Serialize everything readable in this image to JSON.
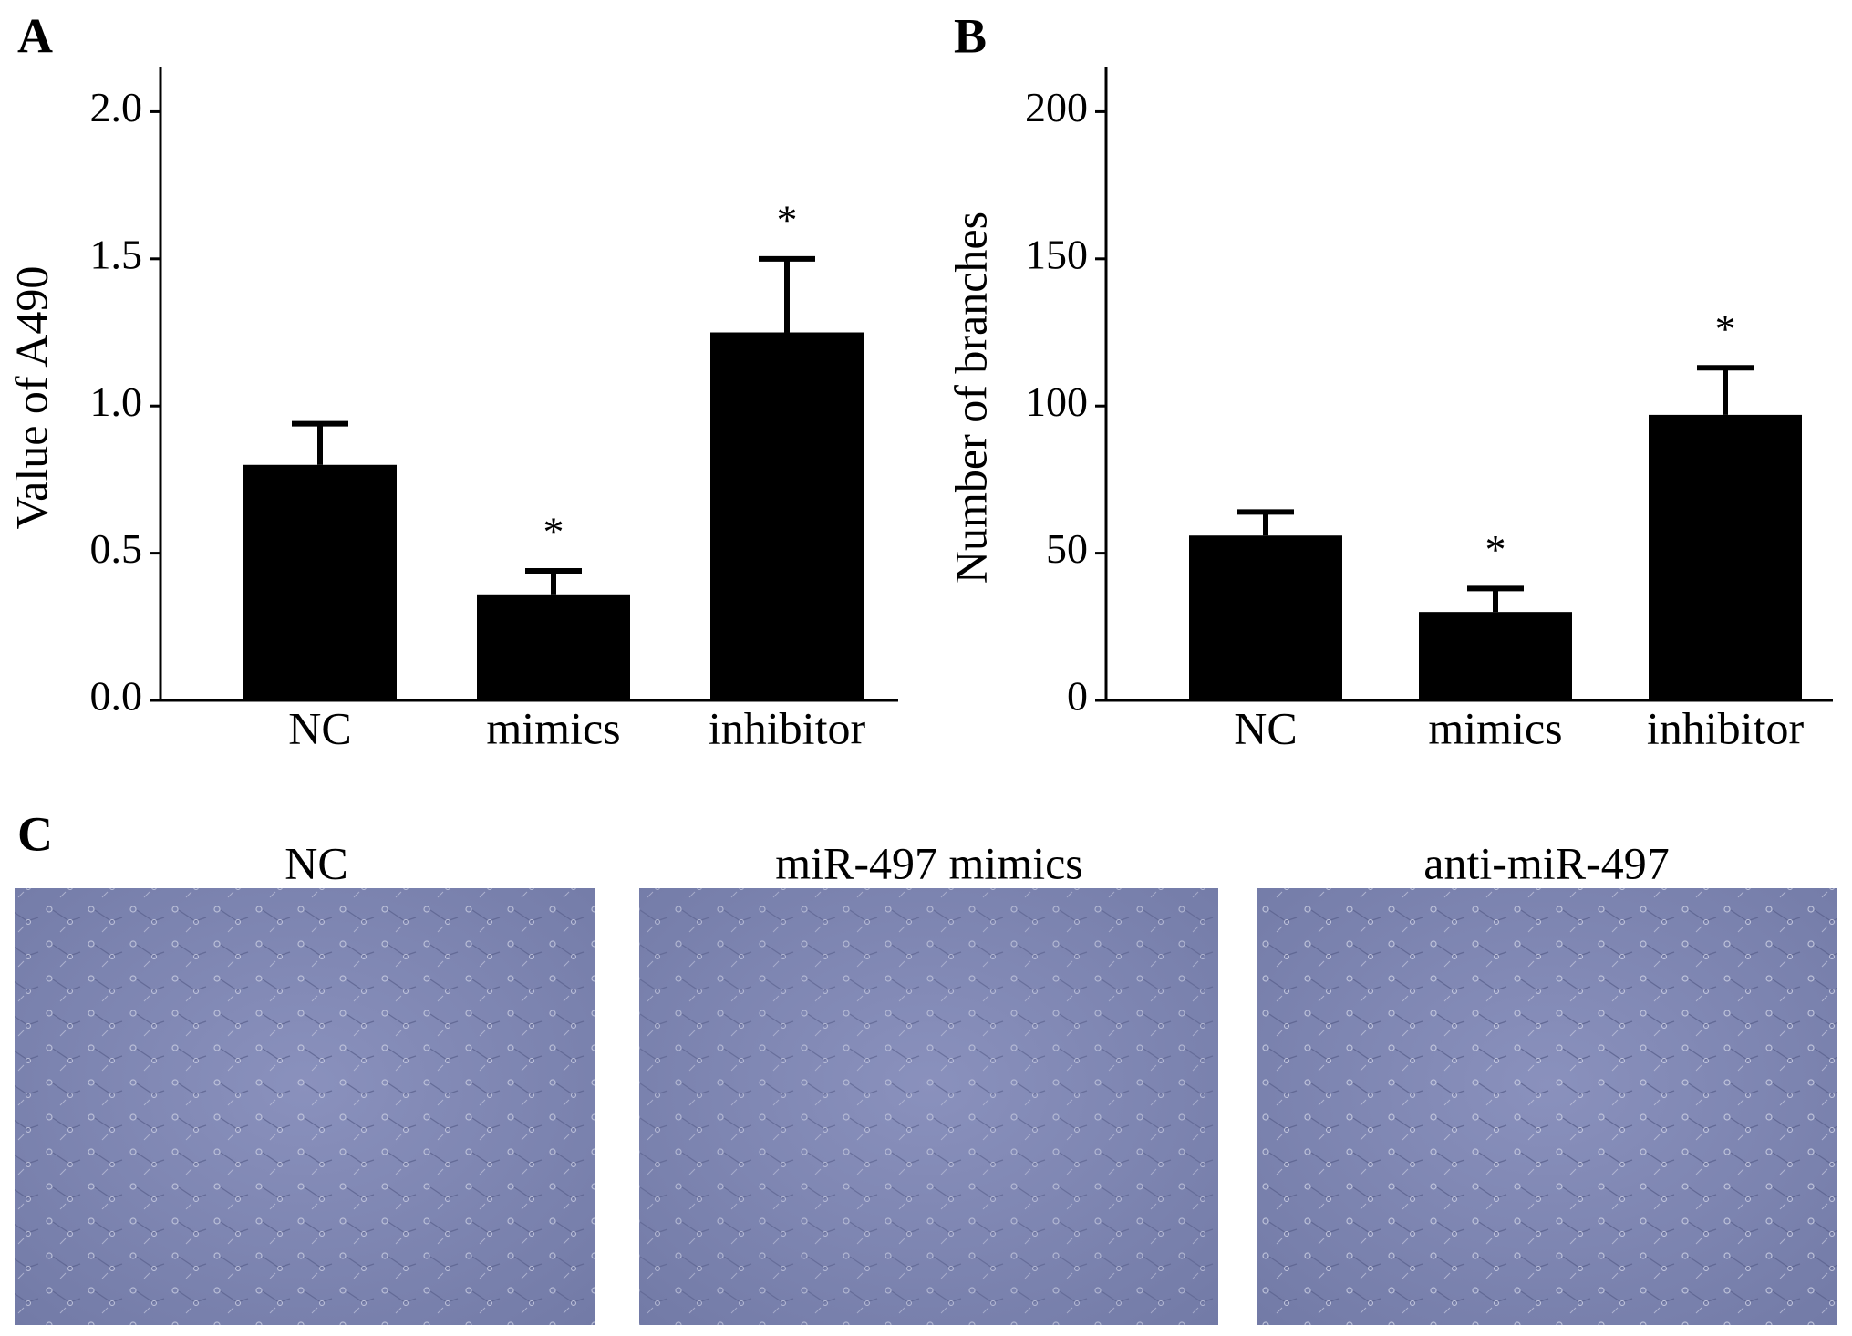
{
  "chart_data": [
    {
      "type": "bar",
      "panel": "A",
      "ylabel": "Value of A490",
      "categories": [
        "NC",
        "mimics",
        "inhibitor"
      ],
      "values": [
        0.8,
        0.36,
        1.25
      ],
      "errors": [
        0.14,
        0.08,
        0.25
      ],
      "annotations": [
        null,
        "*",
        "*"
      ],
      "color": "#000000",
      "ylim": [
        0,
        2.15
      ],
      "yticks": [
        {
          "value": 0,
          "label": "0.0"
        },
        {
          "value": 0.5,
          "label": "0.5"
        },
        {
          "value": 1,
          "label": "1.0"
        },
        {
          "value": 1.5,
          "label": "1.5"
        },
        {
          "value": 2,
          "label": "2.0"
        }
      ]
    },
    {
      "type": "bar",
      "panel": "B",
      "ylabel": "Number of branches",
      "categories": [
        "NC",
        "mimics",
        "inhibitor"
      ],
      "values": [
        56,
        30,
        97
      ],
      "errors": [
        8,
        8,
        16
      ],
      "annotations": [
        null,
        "*",
        "*"
      ],
      "color": "#000000",
      "ylim": [
        0,
        215
      ],
      "yticks": [
        0,
        50,
        100,
        150,
        200
      ]
    }
  ],
  "panel_c": {
    "label": "C",
    "titles": [
      "NC",
      "miR-497 mimics",
      "anti-miR-497"
    ]
  }
}
